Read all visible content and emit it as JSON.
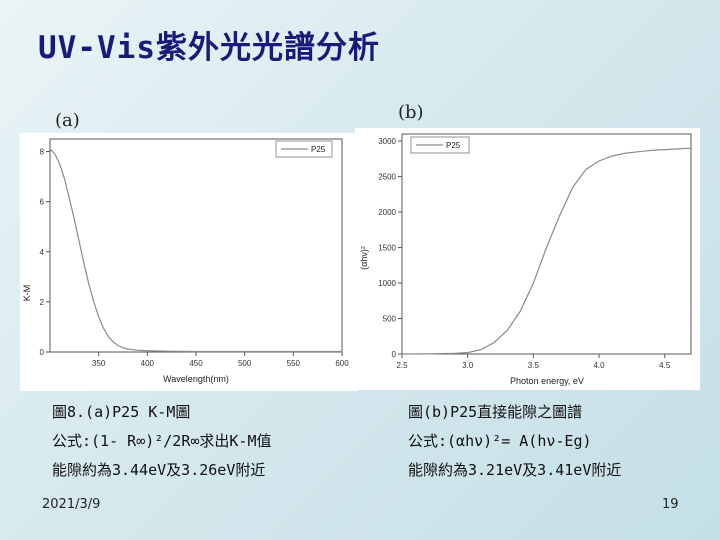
{
  "slide": {
    "title": "UV-Vis紫外光光譜分析",
    "date": "2021/3/9",
    "page_number": "19",
    "title_color": "#1a1a7a"
  },
  "panel_a": {
    "label": "(a)",
    "caption": [
      "圖8.(a)P25 K-M圖",
      "公式:(1- R∞)²/2R∞求出K-M值",
      "能隙約為3.44eV及3.26eV附近"
    ]
  },
  "panel_b": {
    "label": "(b)",
    "caption": [
      "圖(b)P25直接能隙之圖譜",
      "公式:(αhν)²= A(hν-Eg)",
      "能隙約為3.21eV及3.41eV附近"
    ]
  },
  "chart_data": [
    {
      "type": "line",
      "xlabel": "Wavelength(nm)",
      "ylabel": "K-M",
      "xlim": [
        300,
        600
      ],
      "ylim": [
        0,
        8.5
      ],
      "xticks": [
        "350",
        "400",
        "450",
        "500",
        "550",
        "600"
      ],
      "yticks": [
        "0",
        "2",
        "4",
        "6",
        "8"
      ],
      "legend": "top-right",
      "series": [
        {
          "name": "P25",
          "x": [
            300,
            305,
            310,
            315,
            320,
            325,
            330,
            335,
            340,
            345,
            350,
            355,
            360,
            365,
            370,
            375,
            380,
            385,
            390,
            395,
            400,
            410,
            420,
            450,
            500,
            550,
            600
          ],
          "y": [
            8.1,
            7.9,
            7.5,
            6.9,
            6.1,
            5.3,
            4.4,
            3.5,
            2.7,
            2.0,
            1.4,
            0.95,
            0.62,
            0.4,
            0.26,
            0.17,
            0.12,
            0.09,
            0.07,
            0.06,
            0.05,
            0.04,
            0.03,
            0.02,
            0.02,
            0.02,
            0.02
          ]
        }
      ]
    },
    {
      "type": "line",
      "xlabel": "Photon energy, eV",
      "ylabel": "(αhν)²",
      "xlim": [
        2.5,
        4.7
      ],
      "ylim": [
        0,
        3100
      ],
      "xticks": [
        "2.5",
        "3.0",
        "3.5",
        "4.0",
        "4.5"
      ],
      "yticks": [
        "0",
        "500",
        "1000",
        "1500",
        "2000",
        "2500",
        "3000"
      ],
      "legend": "top-left",
      "series": [
        {
          "name": "P25",
          "x": [
            2.5,
            2.7,
            2.9,
            3.0,
            3.1,
            3.2,
            3.3,
            3.4,
            3.5,
            3.6,
            3.7,
            3.8,
            3.9,
            4.0,
            4.1,
            4.2,
            4.3,
            4.4,
            4.5,
            4.6,
            4.7
          ],
          "y": [
            0,
            2,
            8,
            20,
            60,
            160,
            330,
            600,
            1000,
            1500,
            1950,
            2350,
            2600,
            2720,
            2790,
            2830,
            2850,
            2870,
            2880,
            2890,
            2900
          ]
        }
      ]
    }
  ]
}
